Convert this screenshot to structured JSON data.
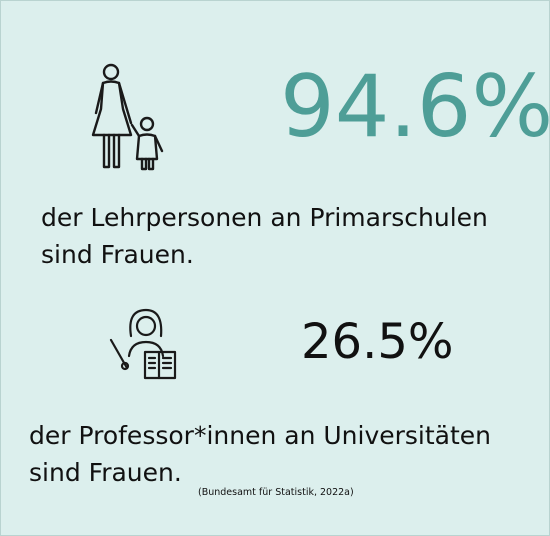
{
  "colors": {
    "background": "#dcefed",
    "accent": "#4e9e97",
    "text": "#111111"
  },
  "stats": [
    {
      "value": "94.6%",
      "icon": "mother-and-child-icon",
      "description": "der Lehrpersonen an Primarschulen sind Frauen."
    },
    {
      "value": "26.5%",
      "icon": "teacher-with-pointer-icon",
      "description": "der Professor*innen an Universitäten sind Frauen."
    }
  ],
  "source": "(Bundesamt für Statistik, 2022a)"
}
